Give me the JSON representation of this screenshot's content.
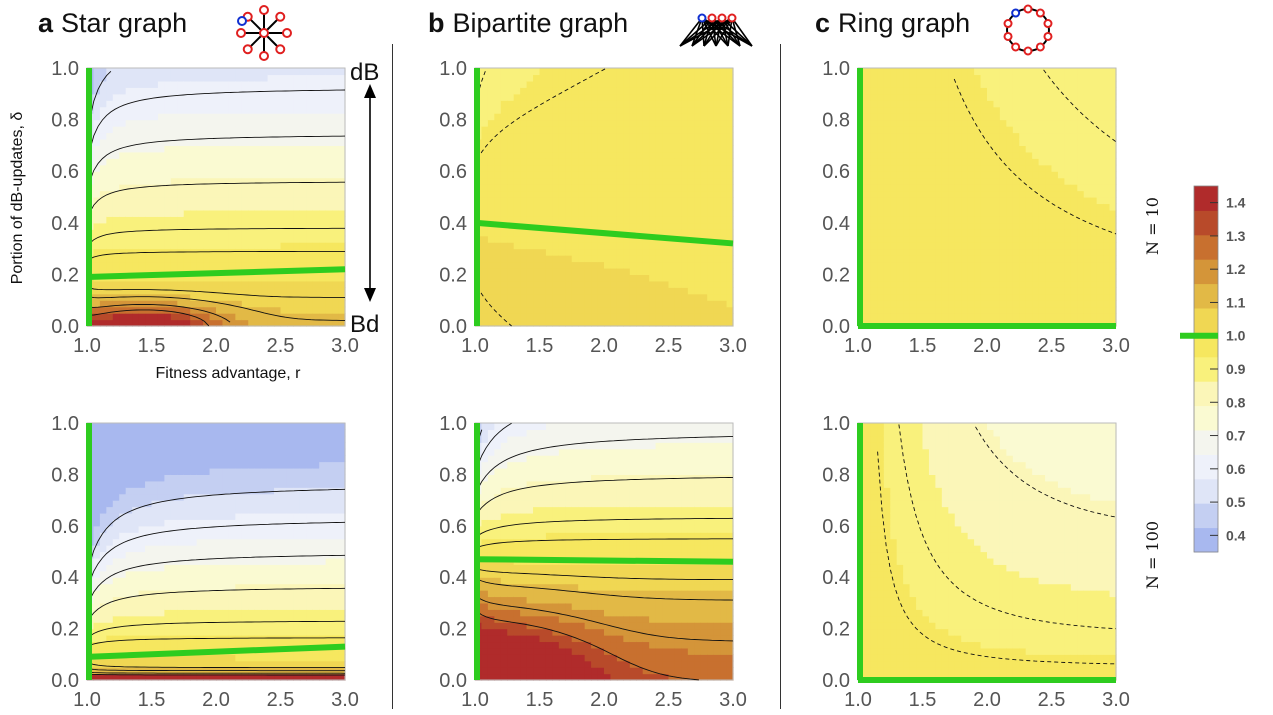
{
  "panel_titles": [
    {
      "letter": "a",
      "text": "Star graph"
    },
    {
      "letter": "b",
      "text": "Bipartite graph"
    },
    {
      "letter": "c",
      "text": "Ring graph"
    }
  ],
  "icon_names": [
    "star-graph-icon",
    "bipartite-graph-icon",
    "ring-graph-icon"
  ],
  "annotations": {
    "top": "dB",
    "bottom": "Bd"
  },
  "colors": {
    "neutral_line": "#2ecc1f",
    "scale": [
      "#a8b8ef",
      "#c4cff2",
      "#dfe5f7",
      "#eef1fa",
      "#f4f5ee",
      "#fafad2",
      "#fbf6b8",
      "#f9f17c",
      "#f6e75f",
      "#f0d753",
      "#e2b946",
      "#d49539",
      "#c8702f",
      "#b84a2a",
      "#b02b2b"
    ]
  },
  "chart_data": [
    {
      "id": "a-N10",
      "type": "contour",
      "graph": "Star graph",
      "N": 10,
      "xlabel": "Fitness advantage, r",
      "ylabel": "Portion of dB-updates, δ",
      "xlim": [
        1.0,
        3.0
      ],
      "ylim": [
        0.0,
        1.0
      ],
      "xticks": [
        "1.0",
        "1.5",
        "2.0",
        "2.5",
        "3.0"
      ],
      "yticks": [
        "0.0",
        "0.2",
        "0.4",
        "0.6",
        "0.8",
        "1.0"
      ],
      "neutral_contour": {
        "r": [
          1.0,
          3.0
        ],
        "delta": [
          0.19,
          0.22
        ]
      },
      "value_range": [
        0.45,
        1.42
      ]
    },
    {
      "id": "b-N10",
      "type": "contour",
      "graph": "Bipartite graph",
      "N": 10,
      "xlim": [
        1.0,
        3.0
      ],
      "ylim": [
        0.0,
        1.0
      ],
      "xticks": [
        "1.0",
        "1.5",
        "2.0",
        "2.5",
        "3.0"
      ],
      "yticks": [
        "0.0",
        "0.2",
        "0.4",
        "0.6",
        "0.8",
        "1.0"
      ],
      "neutral_contour": {
        "r": [
          1.0,
          3.0
        ],
        "delta": [
          0.4,
          0.32
        ]
      },
      "value_range": [
        0.9,
        1.1
      ]
    },
    {
      "id": "c-N10",
      "type": "contour",
      "graph": "Ring graph",
      "N": 10,
      "xlim": [
        1.0,
        3.0
      ],
      "ylim": [
        0.0,
        1.0
      ],
      "xticks": [
        "1.0",
        "1.5",
        "2.0",
        "2.5",
        "3.0"
      ],
      "yticks": [
        "0.0",
        "0.2",
        "0.4",
        "0.6",
        "0.8",
        "1.0"
      ],
      "neutral_contour": {
        "r": [
          1.0,
          3.0
        ],
        "delta": [
          0.0,
          0.0
        ]
      },
      "value_range": [
        0.9,
        1.0
      ]
    },
    {
      "id": "a-N100",
      "type": "contour",
      "graph": "Star graph",
      "N": 100,
      "xlim": [
        1.0,
        3.0
      ],
      "ylim": [
        0.0,
        1.0
      ],
      "xticks": [
        "1.0",
        "1.5",
        "2.0",
        "2.5",
        "3.0"
      ],
      "yticks": [
        "0.0",
        "0.2",
        "0.4",
        "0.6",
        "0.8",
        "1.0"
      ],
      "neutral_contour": {
        "r": [
          1.0,
          3.0
        ],
        "delta": [
          0.09,
          0.13
        ]
      },
      "value_range": [
        0.3,
        1.45
      ]
    },
    {
      "id": "b-N100",
      "type": "contour",
      "graph": "Bipartite graph",
      "N": 100,
      "xlim": [
        1.0,
        3.0
      ],
      "ylim": [
        0.0,
        1.0
      ],
      "xticks": [
        "1.0",
        "1.5",
        "2.0",
        "2.5",
        "3.0"
      ],
      "yticks": [
        "0.0",
        "0.2",
        "0.4",
        "0.6",
        "0.8",
        "1.0"
      ],
      "neutral_contour": {
        "r": [
          1.0,
          3.0
        ],
        "delta": [
          0.47,
          0.46
        ]
      },
      "value_range": [
        0.5,
        1.42
      ]
    },
    {
      "id": "c-N100",
      "type": "contour",
      "graph": "Ring graph",
      "N": 100,
      "xlim": [
        1.0,
        3.0
      ],
      "ylim": [
        0.0,
        1.0
      ],
      "xticks": [
        "1.0",
        "1.5",
        "2.0",
        "2.5",
        "3.0"
      ],
      "yticks": [
        "0.0",
        "0.2",
        "0.4",
        "0.6",
        "0.8",
        "1.0"
      ],
      "neutral_contour": {
        "r": [
          1.0,
          3.0
        ],
        "delta": [
          0.0,
          0.0
        ]
      },
      "value_range": [
        0.75,
        1.0
      ]
    }
  ],
  "row_labels": [
    "N = 10",
    "N = 100"
  ],
  "colorbar": {
    "ticks": [
      "1.4",
      "1.3",
      "1.2",
      "1.1",
      "1.0",
      "0.9",
      "0.8",
      "0.7",
      "0.6",
      "0.5",
      "0.4"
    ],
    "range": [
      0.35,
      1.45
    ],
    "neutral": "1.0"
  }
}
